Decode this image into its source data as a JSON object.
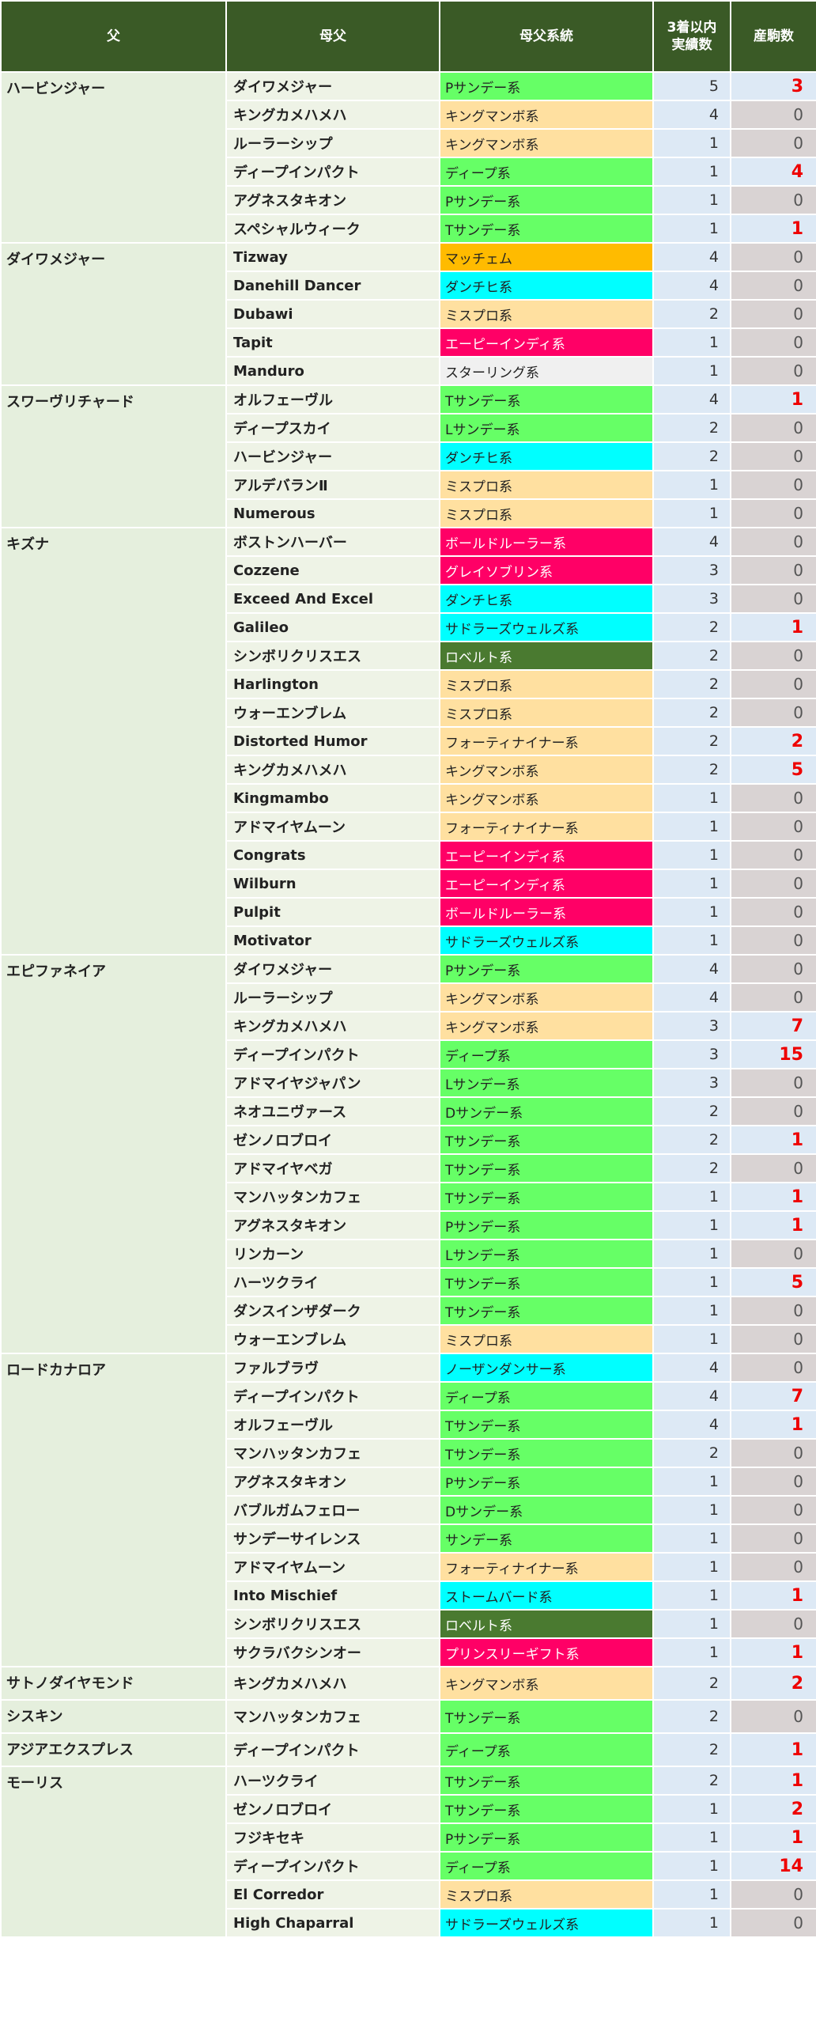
{
  "colors": {
    "header": "#3a5a26",
    "Pサンデー系": "#66ff66",
    "Tサンデー系": "#66ff66",
    "Lサンデー系": "#66ff66",
    "Dサンデー系": "#66ff66",
    "サンデー系": "#66ff66",
    "ディープ系": "#66ff66",
    "キングマンボ系": "#ffe0a0",
    "ミスプロ系": "#ffe0a0",
    "フォーティナイナー系": "#ffe0a0",
    "マッチェム": "#ffbb00",
    "ダンチヒ系": "#00ffff",
    "サドラーズウェルズ系": "#00ffff",
    "ノーザンダンサー系": "#00ffff",
    "ストームバード系": "#00ffff",
    "エーピーインディ系": "#ff0066",
    "ボールドルーラー系": "#ff0066",
    "グレイソブリン系": "#ff0066",
    "プリンスリーギフト系": "#ff0066",
    "ロベルト系": "#4a7a30",
    "スターリング系": "#f0f0f0"
  },
  "headers": {
    "sire": "父",
    "damsire": "母父",
    "line": "母父系統",
    "count": "3着以内\n実績数",
    "foals": "産駒数"
  },
  "groups": [
    {
      "sire": "ハービンジャー",
      "rows": [
        {
          "damsire": "ダイワメジャー",
          "line": "Pサンデー系",
          "count": 5,
          "foals": 3
        },
        {
          "damsire": "キングカメハメハ",
          "line": "キングマンボ系",
          "count": 4,
          "foals": 0
        },
        {
          "damsire": "ルーラーシップ",
          "line": "キングマンボ系",
          "count": 1,
          "foals": 0
        },
        {
          "damsire": "ディープインパクト",
          "line": "ディープ系",
          "count": 1,
          "foals": 4
        },
        {
          "damsire": "アグネスタキオン",
          "line": "Pサンデー系",
          "count": 1,
          "foals": 0
        },
        {
          "damsire": "スペシャルウィーク",
          "line": "Tサンデー系",
          "count": 1,
          "foals": 1
        }
      ]
    },
    {
      "sire": "ダイワメジャー",
      "rows": [
        {
          "damsire": "Tizway",
          "line": "マッチェム",
          "count": 4,
          "foals": 0
        },
        {
          "damsire": "Danehill Dancer",
          "line": "ダンチヒ系",
          "count": 4,
          "foals": 0
        },
        {
          "damsire": "Dubawi",
          "line": "ミスプロ系",
          "count": 2,
          "foals": 0
        },
        {
          "damsire": "Tapit",
          "line": "エーピーインディ系",
          "count": 1,
          "foals": 0
        },
        {
          "damsire": "Manduro",
          "line": "スターリング系",
          "count": 1,
          "foals": 0
        }
      ]
    },
    {
      "sire": "スワーヴリチャード",
      "rows": [
        {
          "damsire": "オルフェーヴル",
          "line": "Tサンデー系",
          "count": 4,
          "foals": 1
        },
        {
          "damsire": "ディープスカイ",
          "line": "Lサンデー系",
          "count": 2,
          "foals": 0
        },
        {
          "damsire": "ハービンジャー",
          "line": "ダンチヒ系",
          "count": 2,
          "foals": 0
        },
        {
          "damsire": "アルデバランⅡ",
          "line": "ミスプロ系",
          "count": 1,
          "foals": 0
        },
        {
          "damsire": "Numerous",
          "line": "ミスプロ系",
          "count": 1,
          "foals": 0
        }
      ]
    },
    {
      "sire": "キズナ",
      "rows": [
        {
          "damsire": "ボストンハーバー",
          "line": "ボールドルーラー系",
          "count": 4,
          "foals": 0
        },
        {
          "damsire": "Cozzene",
          "line": "グレイソブリン系",
          "count": 3,
          "foals": 0
        },
        {
          "damsire": "Exceed And Excel",
          "line": "ダンチヒ系",
          "count": 3,
          "foals": 0
        },
        {
          "damsire": "Galileo",
          "line": "サドラーズウェルズ系",
          "count": 2,
          "foals": 1
        },
        {
          "damsire": "シンボリクリスエス",
          "line": "ロベルト系",
          "count": 2,
          "foals": 0
        },
        {
          "damsire": "Harlington",
          "line": "ミスプロ系",
          "count": 2,
          "foals": 0
        },
        {
          "damsire": "ウォーエンブレム",
          "line": "ミスプロ系",
          "count": 2,
          "foals": 0
        },
        {
          "damsire": "Distorted Humor",
          "line": "フォーティナイナー系",
          "count": 2,
          "foals": 2
        },
        {
          "damsire": "キングカメハメハ",
          "line": "キングマンボ系",
          "count": 2,
          "foals": 5
        },
        {
          "damsire": "Kingmambo",
          "line": "キングマンボ系",
          "count": 1,
          "foals": 0
        },
        {
          "damsire": "アドマイヤムーン",
          "line": "フォーティナイナー系",
          "count": 1,
          "foals": 0
        },
        {
          "damsire": "Congrats",
          "line": "エーピーインディ系",
          "count": 1,
          "foals": 0
        },
        {
          "damsire": "Wilburn",
          "line": "エーピーインディ系",
          "count": 1,
          "foals": 0
        },
        {
          "damsire": "Pulpit",
          "line": "ボールドルーラー系",
          "count": 1,
          "foals": 0
        },
        {
          "damsire": "Motivator",
          "line": "サドラーズウェルズ系",
          "count": 1,
          "foals": 0
        }
      ]
    },
    {
      "sire": "エピファネイア",
      "rows": [
        {
          "damsire": "ダイワメジャー",
          "line": "Pサンデー系",
          "count": 4,
          "foals": 0
        },
        {
          "damsire": "ルーラーシップ",
          "line": "キングマンボ系",
          "count": 4,
          "foals": 0
        },
        {
          "damsire": "キングカメハメハ",
          "line": "キングマンボ系",
          "count": 3,
          "foals": 7
        },
        {
          "damsire": "ディープインパクト",
          "line": "ディープ系",
          "count": 3,
          "foals": 15
        },
        {
          "damsire": "アドマイヤジャパン",
          "line": "Lサンデー系",
          "count": 3,
          "foals": 0
        },
        {
          "damsire": "ネオユニヴァース",
          "line": "Dサンデー系",
          "count": 2,
          "foals": 0
        },
        {
          "damsire": "ゼンノロブロイ",
          "line": "Tサンデー系",
          "count": 2,
          "foals": 1
        },
        {
          "damsire": "アドマイヤベガ",
          "line": "Tサンデー系",
          "count": 2,
          "foals": 0
        },
        {
          "damsire": "マンハッタンカフェ",
          "line": "Tサンデー系",
          "count": 1,
          "foals": 1
        },
        {
          "damsire": "アグネスタキオン",
          "line": "Pサンデー系",
          "count": 1,
          "foals": 1
        },
        {
          "damsire": "リンカーン",
          "line": "Lサンデー系",
          "count": 1,
          "foals": 0
        },
        {
          "damsire": "ハーツクライ",
          "line": "Tサンデー系",
          "count": 1,
          "foals": 5
        },
        {
          "damsire": "ダンスインザダーク",
          "line": "Tサンデー系",
          "count": 1,
          "foals": 0
        },
        {
          "damsire": "ウォーエンブレム",
          "line": "ミスプロ系",
          "count": 1,
          "foals": 0
        }
      ]
    },
    {
      "sire": "ロードカナロア",
      "rows": [
        {
          "damsire": "ファルブラヴ",
          "line": "ノーザンダンサー系",
          "count": 4,
          "foals": 0
        },
        {
          "damsire": "ディープインパクト",
          "line": "ディープ系",
          "count": 4,
          "foals": 7
        },
        {
          "damsire": "オルフェーヴル",
          "line": "Tサンデー系",
          "count": 4,
          "foals": 1
        },
        {
          "damsire": "マンハッタンカフェ",
          "line": "Tサンデー系",
          "count": 2,
          "foals": 0
        },
        {
          "damsire": "アグネスタキオン",
          "line": "Pサンデー系",
          "count": 1,
          "foals": 0
        },
        {
          "damsire": "バブルガムフェロー",
          "line": "Dサンデー系",
          "count": 1,
          "foals": 0
        },
        {
          "damsire": "サンデーサイレンス",
          "line": "サンデー系",
          "count": 1,
          "foals": 0
        },
        {
          "damsire": "アドマイヤムーン",
          "line": "フォーティナイナー系",
          "count": 1,
          "foals": 0
        },
        {
          "damsire": "Into Mischief",
          "line": "ストームバード系",
          "count": 1,
          "foals": 1
        },
        {
          "damsire": "シンボリクリスエス",
          "line": "ロベルト系",
          "count": 1,
          "foals": 0
        },
        {
          "damsire": "サクラバクシンオー",
          "line": "プリンスリーギフト系",
          "count": 1,
          "foals": 1
        }
      ]
    },
    {
      "sire": "サトノダイヤモンド",
      "rows": [
        {
          "damsire": "キングカメハメハ",
          "line": "キングマンボ系",
          "count": 2,
          "foals": 2
        }
      ]
    },
    {
      "sire": "シスキン",
      "rows": [
        {
          "damsire": "マンハッタンカフェ",
          "line": "Tサンデー系",
          "count": 2,
          "foals": 0
        }
      ]
    },
    {
      "sire": "アジアエクスプレス",
      "rows": [
        {
          "damsire": "ディープインパクト",
          "line": "ディープ系",
          "count": 2,
          "foals": 1
        }
      ]
    },
    {
      "sire": "モーリス",
      "rows": [
        {
          "damsire": "ハーツクライ",
          "line": "Tサンデー系",
          "count": 2,
          "foals": 1
        },
        {
          "damsire": "ゼンノロブロイ",
          "line": "Tサンデー系",
          "count": 1,
          "foals": 2
        },
        {
          "damsire": "フジキセキ",
          "line": "Pサンデー系",
          "count": 1,
          "foals": 1
        },
        {
          "damsire": "ディープインパクト",
          "line": "ディープ系",
          "count": 1,
          "foals": 14
        },
        {
          "damsire": "El Corredor",
          "line": "ミスプロ系",
          "count": 1,
          "foals": 0
        },
        {
          "damsire": "High Chaparral",
          "line": "サドラーズウェルズ系",
          "count": 1,
          "foals": 0
        }
      ]
    }
  ]
}
